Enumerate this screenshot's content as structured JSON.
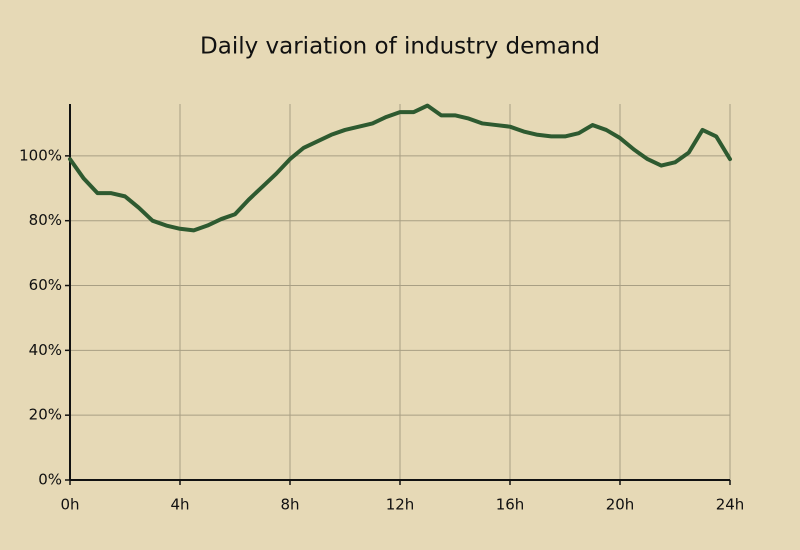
{
  "chart_data": {
    "type": "line",
    "title": "Daily variation of industry demand",
    "x": [
      0,
      0.5,
      1,
      1.5,
      2,
      2.5,
      3,
      3.5,
      4,
      4.5,
      5,
      5.5,
      6,
      6.5,
      7,
      7.5,
      8,
      8.5,
      9,
      9.5,
      10,
      10.5,
      11,
      11.5,
      12,
      12.5,
      13,
      13.5,
      14,
      14.5,
      15,
      15.5,
      16,
      16.5,
      17,
      17.5,
      18,
      18.5,
      19,
      19.5,
      20,
      20.5,
      21,
      21.5,
      22,
      22.5,
      23,
      23.5,
      24
    ],
    "values": [
      99,
      93,
      88.5,
      88.5,
      87.5,
      84,
      80,
      78.5,
      77.5,
      77,
      78.5,
      80.5,
      82,
      86.5,
      90.5,
      94.5,
      99,
      102.5,
      104.5,
      106.5,
      108,
      109,
      110,
      112,
      113.5,
      113.5,
      115.5,
      112.5,
      112.5,
      111.5,
      110,
      109.5,
      109,
      107.5,
      106.5,
      106,
      106,
      107,
      109.5,
      108,
      105.5,
      102,
      99,
      97,
      98,
      101,
      108,
      106,
      99
    ],
    "color": "#2e5a30",
    "xlim": [
      0,
      24
    ],
    "xticks": [
      {
        "value": 0,
        "label": "0h"
      },
      {
        "value": 4,
        "label": "4h"
      },
      {
        "value": 8,
        "label": "8h"
      },
      {
        "value": 12,
        "label": "12h"
      },
      {
        "value": 16,
        "label": "16h"
      },
      {
        "value": 20,
        "label": "20h"
      },
      {
        "value": 24,
        "label": "24h"
      }
    ],
    "ylim": [
      0,
      116
    ],
    "yticks": [
      {
        "value": 0,
        "label": "0%"
      },
      {
        "value": 20,
        "label": "20%"
      },
      {
        "value": 40,
        "label": "40%"
      },
      {
        "value": 60,
        "label": "60%"
      },
      {
        "value": 80,
        "label": "80%"
      },
      {
        "value": 100,
        "label": "100%"
      }
    ],
    "grid": true
  }
}
